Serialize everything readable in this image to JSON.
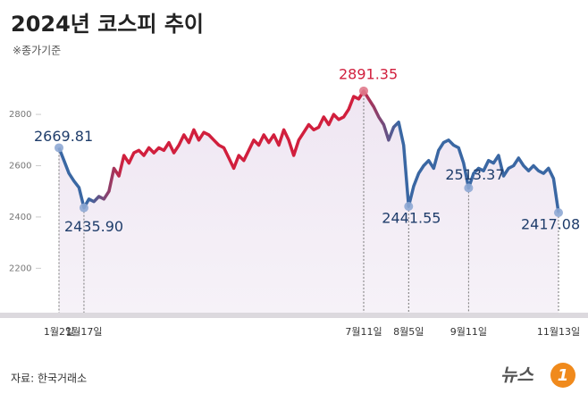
{
  "chart_data": {
    "type": "line",
    "title": "2024년 코스피 추이",
    "subtitle": "※종가기준",
    "source": "자료: 한국거래소",
    "logo": {
      "text": "뉴스",
      "number": "1"
    },
    "categories": [
      "1월2일",
      null,
      null,
      null,
      null,
      "1월17일",
      null,
      null,
      null,
      null,
      null,
      null,
      null,
      null,
      null,
      null,
      null,
      null,
      null,
      null,
      null,
      null,
      null,
      null,
      null,
      null,
      null,
      null,
      null,
      null,
      null,
      null,
      null,
      null,
      null,
      null,
      null,
      null,
      null,
      null,
      null,
      null,
      null,
      null,
      null,
      null,
      null,
      null,
      null,
      null,
      null,
      null,
      null,
      null,
      null,
      null,
      null,
      null,
      null,
      null,
      null,
      "7월11일",
      null,
      null,
      null,
      null,
      null,
      null,
      null,
      null,
      "8월5일",
      null,
      null,
      null,
      null,
      null,
      null,
      null,
      null,
      null,
      null,
      null,
      "9월11일",
      null,
      null,
      null,
      null,
      null,
      null,
      null,
      null,
      null,
      null,
      null,
      null,
      null,
      null,
      null,
      null,
      null,
      "11월13일"
    ],
    "series": [
      {
        "name": "코스피",
        "color": "#3a67a3",
        "highlight_color": "#d11f3d",
        "values": [
          2669.81,
          2620,
          2570,
          2540,
          2515,
          2435.9,
          2470,
          2460,
          2480,
          2470,
          2500,
          2590,
          2560,
          2640,
          2610,
          2650,
          2660,
          2640,
          2670,
          2650,
          2670,
          2660,
          2690,
          2650,
          2680,
          2720,
          2690,
          2740,
          2700,
          2730,
          2720,
          2700,
          2680,
          2670,
          2630,
          2590,
          2640,
          2620,
          2660,
          2700,
          2680,
          2720,
          2690,
          2720,
          2680,
          2740,
          2700,
          2640,
          2700,
          2730,
          2760,
          2740,
          2750,
          2790,
          2760,
          2800,
          2780,
          2790,
          2820,
          2870,
          2860,
          2891.35,
          2860,
          2830,
          2790,
          2760,
          2700,
          2750,
          2770,
          2680,
          2441.55,
          2520,
          2570,
          2600,
          2620,
          2590,
          2660,
          2690,
          2700,
          2680,
          2670,
          2610,
          2513.37,
          2570,
          2590,
          2580,
          2620,
          2610,
          2640,
          2560,
          2590,
          2600,
          2630,
          2600,
          2580,
          2600,
          2580,
          2570,
          2590,
          2550,
          2417.08
        ],
        "value_labels": [
          "2669.81",
          null,
          null,
          null,
          null,
          "2435.90",
          null,
          null,
          null,
          null,
          null,
          null,
          null,
          null,
          null,
          null,
          null,
          null,
          null,
          null,
          null,
          null,
          null,
          null,
          null,
          null,
          null,
          null,
          null,
          null,
          null,
          null,
          null,
          null,
          null,
          null,
          null,
          null,
          null,
          null,
          null,
          null,
          null,
          null,
          null,
          null,
          null,
          null,
          null,
          null,
          null,
          null,
          null,
          null,
          null,
          null,
          null,
          null,
          null,
          null,
          null,
          "2891.35",
          null,
          null,
          null,
          null,
          null,
          null,
          null,
          null,
          "2441.55",
          null,
          null,
          null,
          null,
          null,
          null,
          null,
          null,
          null,
          null,
          null,
          "2513.37",
          null,
          null,
          null,
          null,
          null,
          null,
          null,
          null,
          null,
          null,
          null,
          null,
          null,
          null,
          null,
          null,
          null,
          "2417.08"
        ]
      }
    ],
    "label_color": "#1f3d6b",
    "ylim": [
      2020,
      2950
    ],
    "yticks": [
      2200,
      2400,
      2600,
      2800
    ],
    "grid": false
  }
}
